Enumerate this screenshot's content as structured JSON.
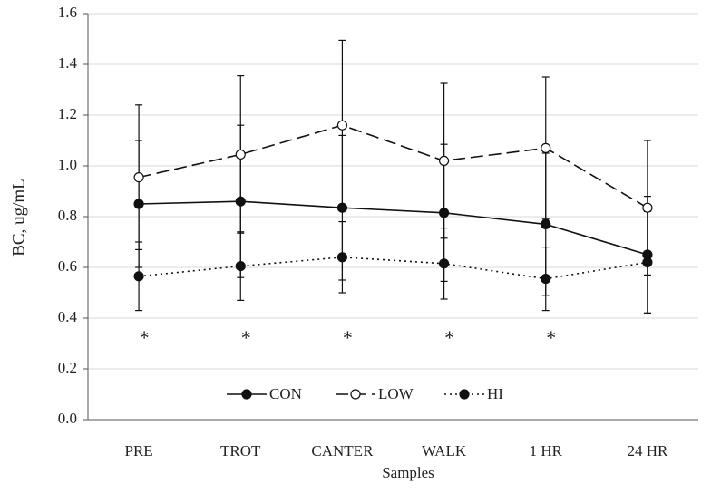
{
  "chart_data": {
    "type": "line",
    "xlabel": "Samples",
    "ylabel": "BC, ug/mL",
    "categories": [
      "PRE",
      "TROT",
      "CANTER",
      "WALK",
      "1 HR",
      "24 HR"
    ],
    "series": [
      {
        "name": "CON",
        "color": "#111111",
        "dash": "solid",
        "marker": "filled",
        "values": [
          0.85,
          0.86,
          0.835,
          0.815,
          0.77,
          0.65
        ],
        "errors": [
          0.25,
          0.3,
          0.285,
          0.27,
          0.28,
          0.23
        ]
      },
      {
        "name": "LOW",
        "color": "#111111",
        "dash": "dashed",
        "marker": "open",
        "values": [
          0.955,
          1.045,
          1.16,
          1.02,
          1.07,
          0.835
        ],
        "errors": [
          0.285,
          0.31,
          0.335,
          0.305,
          0.28,
          0.265
        ]
      },
      {
        "name": "HI",
        "color": "#111111",
        "dash": "dotted",
        "marker": "filled",
        "values": [
          0.565,
          0.605,
          0.64,
          0.615,
          0.555,
          0.62
        ],
        "errors": [
          0.135,
          0.135,
          0.14,
          0.14,
          0.125,
          0.2
        ]
      }
    ],
    "significance": [
      "*",
      "*",
      "*",
      "*",
      "*",
      null
    ],
    "ylim": [
      0,
      1.6
    ],
    "yticks": [
      {
        "value": 0,
        "label": "0.0"
      },
      0.2,
      0.4,
      0.6,
      0.8,
      {
        "value": 1,
        "label": "1.0"
      },
      1.2,
      1.4,
      1.6
    ],
    "grid": true,
    "legend": "bottom"
  }
}
